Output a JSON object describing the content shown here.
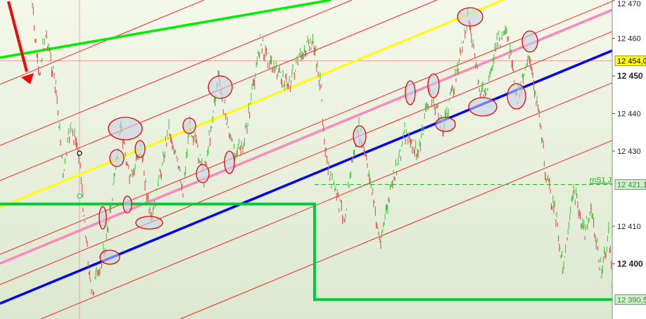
{
  "chart_data": {
    "type": "line",
    "ylim": [
      12387,
      12470
    ],
    "y_ticks": [
      {
        "value": 12470,
        "label": "12 470",
        "bold": false
      },
      {
        "value": 12460,
        "label": "12 460",
        "bold": false
      },
      {
        "value": 12450,
        "label": "12 450",
        "bold": true
      },
      {
        "value": 12440,
        "label": "12 440",
        "bold": false
      },
      {
        "value": 12430,
        "label": "12 430",
        "bold": false
      },
      {
        "value": 12410,
        "label": "12 410",
        "bold": false
      },
      {
        "value": 12400,
        "label": "12 400",
        "bold": true
      }
    ],
    "price_labels": [
      {
        "value": 12454.0,
        "label": "12 454,0",
        "bg": "#ffff00",
        "color": "#000000"
      },
      {
        "value": 12421.1,
        "label": "12 421,1",
        "bg": "#d6ecd0",
        "color": "#2a9a2a"
      },
      {
        "value": 12390.5,
        "label": "12 390,5",
        "bg": "#d6ecd0",
        "color": "#2a9a2a"
      }
    ],
    "level_label": "mS1 J",
    "price_series": [
      12470.2,
      12449.6,
      12461.8,
      12445.9,
      12423.5,
      12436.5,
      12429.4,
      12416,
      12391.7,
      12404.8,
      12436.5,
      12421.6,
      12431,
      12410.4,
      12436.5,
      12419.7,
      12437.5,
      12423.5,
      12449.6,
      12431,
      12430,
      12459,
      12451.5,
      12447.8,
      12456.2,
      12459,
      12447.8,
      12425.3,
      12412.2,
      12427.2,
      12435.6,
      12423.5,
      12405.7,
      12423.5,
      12434.7,
      12429.1,
      12446,
      12436.5,
      12451.5,
      12466.5,
      12447.8,
      12444,
      12458.8,
      12460.8,
      12444,
      12455.2,
      12442.1,
      12424.4,
      12412.2,
      12399.2,
      12419.7,
      12408.5,
      12414.1,
      12397.3,
      12408.5,
      12393.6
    ],
    "colors": {
      "up": "#44cc44",
      "down": "#dd5555",
      "channel": "#ff2222",
      "blue": "#0000ee",
      "pink": "#ff88bb",
      "yellow": "#ffff00",
      "green": "#00ee00",
      "level": "#00cc33",
      "arrow": "#ff0000",
      "background_top": "#f4f8ea",
      "background_bottom": "#dce8d0"
    },
    "grid": false
  }
}
